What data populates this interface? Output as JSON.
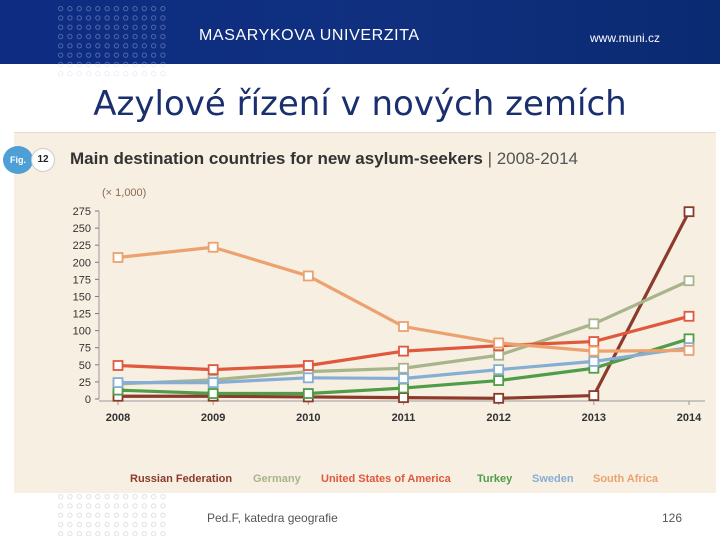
{
  "header": {
    "university": "MASARYKOVA UNIVERZITA",
    "website": "www.muni.cz"
  },
  "slide_title": "Azylové řízení v nových zemích",
  "figure": {
    "badge": "Fig.",
    "number": "12",
    "unit_note": "(× 1,000)"
  },
  "footer": {
    "text": "Ped.F, katedra geografie",
    "page": "126"
  },
  "chart_data": {
    "type": "line",
    "title": "Main destination countries for new asylum-seekers",
    "title_separator": " | ",
    "subtitle": "2008-2014",
    "xlabel": "",
    "ylabel": "(× 1,000)",
    "x": [
      "2008",
      "2009",
      "2010",
      "2011",
      "2012",
      "2013",
      "2014"
    ],
    "yticks": [
      0,
      25,
      50,
      75,
      100,
      125,
      150,
      175,
      200,
      225,
      250,
      275
    ],
    "ylim": [
      0,
      275
    ],
    "grid": false,
    "legend_position": "bottom",
    "series": [
      {
        "name": "Russian Federation",
        "color": "#8b3a2b",
        "values": [
          4,
          4,
          3,
          2,
          1,
          5,
          274
        ]
      },
      {
        "name": "Germany",
        "color": "#a8b58a",
        "values": [
          22,
          28,
          40,
          45,
          64,
          110,
          173
        ]
      },
      {
        "name": "United States of America",
        "color": "#e0583d",
        "values": [
          49,
          43,
          49,
          70,
          78,
          84,
          121
        ]
      },
      {
        "name": "Turkey",
        "color": "#4f9d49",
        "values": [
          13,
          8,
          8,
          16,
          27,
          45,
          88
        ]
      },
      {
        "name": "Sweden",
        "color": "#86aed4",
        "values": [
          24,
          24,
          31,
          30,
          43,
          55,
          75
        ]
      },
      {
        "name": "South Africa",
        "color": "#eba26f",
        "values": [
          207,
          222,
          180,
          106,
          82,
          70,
          71
        ]
      }
    ]
  }
}
